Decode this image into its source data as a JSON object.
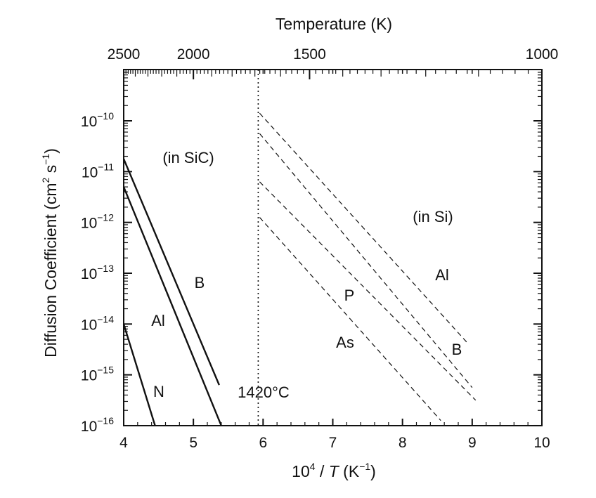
{
  "chart_data": {
    "type": "line",
    "x_axis": {
      "label_base": "10",
      "label_exp": "4",
      "label_mid": " / ",
      "label_var": "T",
      "label_unit_open": " (K",
      "label_unit_exp": "−1",
      "label_unit_close": ")",
      "range": [
        4,
        10
      ],
      "ticks": [
        "4",
        "5",
        "6",
        "7",
        "8",
        "9",
        "10"
      ]
    },
    "top_axis": {
      "title": "Temperature (K)",
      "ticks": [
        {
          "label": "2500",
          "kelvin": 2500
        },
        {
          "label": "2000",
          "kelvin": 2000
        },
        {
          "label": "1500",
          "kelvin": 1500
        },
        {
          "label": "1000",
          "kelvin": 1000
        }
      ]
    },
    "y_axis": {
      "label_main": "Diffusion Coefficient (cm",
      "label_exp1": "2",
      "label_mid": " s",
      "label_exp2": "−1",
      "label_close": ")",
      "log": true,
      "range_exp": [
        -16,
        -9.5
      ],
      "ticks": [
        {
          "base": "10",
          "exp": "−10",
          "value_exp": -10
        },
        {
          "base": "10",
          "exp": "−11",
          "value_exp": -11
        },
        {
          "base": "10",
          "exp": "−12",
          "value_exp": -12
        },
        {
          "base": "10",
          "exp": "−13",
          "value_exp": -13
        },
        {
          "base": "10",
          "exp": "−14",
          "value_exp": -14
        },
        {
          "base": "10",
          "exp": "−15",
          "value_exp": -15
        },
        {
          "base": "10",
          "exp": "−16",
          "value_exp": -16
        }
      ]
    },
    "melting_line": {
      "x": 5.93,
      "label": "1420°C"
    },
    "regions": {
      "sic": "(in SiC)",
      "si": "(in Si)"
    },
    "series": [
      {
        "name": "B",
        "group": "SiC",
        "style": "solid",
        "x": [
          4.0,
          5.37
        ],
        "log10_y": [
          -10.75,
          -15.2
        ]
      },
      {
        "name": "Al",
        "group": "SiC",
        "style": "solid",
        "x": [
          4.0,
          5.4
        ],
        "log10_y": [
          -11.3,
          -16.0
        ]
      },
      {
        "name": "N",
        "group": "SiC",
        "style": "solid",
        "x": [
          4.0,
          4.45
        ],
        "log10_y": [
          -14.0,
          -16.0
        ]
      },
      {
        "name": "Al",
        "group": "Si",
        "style": "dashed",
        "x": [
          5.95,
          8.95
        ],
        "log10_y": [
          -9.85,
          -14.4
        ]
      },
      {
        "name": "B",
        "group": "Si",
        "style": "dashed",
        "x": [
          5.95,
          9.0
        ],
        "log10_y": [
          -10.25,
          -15.25
        ]
      },
      {
        "name": "P",
        "group": "Si",
        "style": "dashed",
        "x": [
          5.95,
          9.05
        ],
        "log10_y": [
          -11.2,
          -15.5
        ]
      },
      {
        "name": "As",
        "group": "Si",
        "style": "dashed",
        "x": [
          5.95,
          8.55
        ],
        "log10_y": [
          -11.9,
          -15.9
        ]
      }
    ]
  }
}
